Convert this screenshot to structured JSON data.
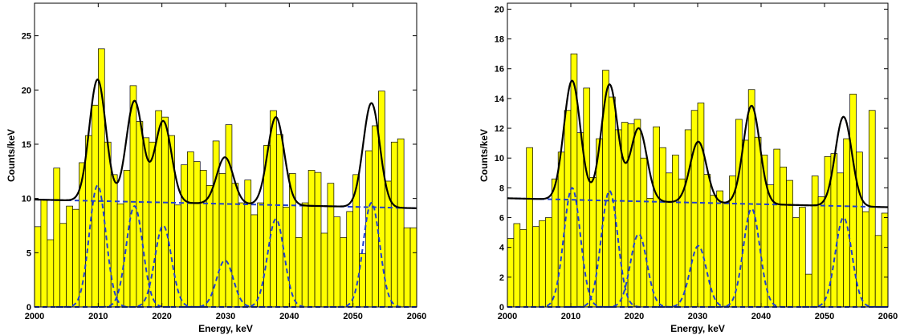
{
  "chart_data": [
    {
      "type": "bar",
      "xlabel": "Energy, keV",
      "ylabel": "Counts/keV",
      "xlim": [
        2000,
        2060
      ],
      "ylim": [
        0,
        28
      ],
      "xticks": [
        2000,
        2010,
        2020,
        2030,
        2040,
        2050,
        2060
      ],
      "yticks": [
        0,
        5,
        10,
        15,
        20,
        25
      ],
      "bar_color": "#ffff00",
      "bin_width": 1,
      "bins_start": 2000,
      "values": [
        7.4,
        9.9,
        6.2,
        12.8,
        7.7,
        9.3,
        9.0,
        13.3,
        15.8,
        18.6,
        23.8,
        15.2,
        12.2,
        9.5,
        12.6,
        20.4,
        17.1,
        15.6,
        15.2,
        18.1,
        17.5,
        15.8,
        9.4,
        13.1,
        14.3,
        13.4,
        12.6,
        11.2,
        15.3,
        12.3,
        16.8,
        11.4,
        9.6,
        11.7,
        8.5,
        9.6,
        14.9,
        18.1,
        15.9,
        9.2,
        12.3,
        6.4,
        9.6,
        12.6,
        12.4,
        6.8,
        11.4,
        8.3,
        6.4,
        8.8,
        12.2,
        4.9,
        14.4,
        16.7,
        19.9,
        11.6,
        15.2,
        15.5,
        7.3,
        7.3
      ],
      "series": [
        {
          "name": "",
          "kind": "fit",
          "color": "#000000",
          "background": {
            "start": 9.9,
            "end": 9.1
          },
          "peaks": [
            {
              "center": 2009.9,
              "amplitude": 11.2,
              "sigma": 1.3
            },
            {
              "center": 2015.7,
              "amplitude": 9.3,
              "sigma": 1.3
            },
            {
              "center": 2020.2,
              "amplitude": 7.5,
              "sigma": 1.3
            },
            {
              "center": 2029.9,
              "amplitude": 4.3,
              "sigma": 1.3
            },
            {
              "center": 2037.9,
              "amplitude": 8.1,
              "sigma": 1.3
            },
            {
              "center": 2052.9,
              "amplitude": 9.6,
              "sigma": 1.3
            }
          ]
        },
        {
          "name": "",
          "kind": "dashed-components",
          "color": "#1f3fd0"
        }
      ]
    },
    {
      "type": "bar",
      "xlabel": "Energy, keV",
      "ylabel": "Counts/keV",
      "xlim": [
        2000,
        2060
      ],
      "ylim": [
        0,
        20.4
      ],
      "xticks": [
        2000,
        2010,
        2020,
        2030,
        2040,
        2050,
        2060
      ],
      "yticks": [
        0,
        2,
        4,
        6,
        8,
        10,
        12,
        14,
        16,
        18,
        20
      ],
      "bar_color": "#ffff00",
      "bin_width": 1,
      "bins_start": 2000,
      "values": [
        4.6,
        5.6,
        5.2,
        10.7,
        5.4,
        5.8,
        6.0,
        8.6,
        10.4,
        13.2,
        17.0,
        11.7,
        14.7,
        8.7,
        11.3,
        15.9,
        14.1,
        11.9,
        12.4,
        12.3,
        12.6,
        10.0,
        7.3,
        12.1,
        10.7,
        9.0,
        10.2,
        8.6,
        11.9,
        13.2,
        13.7,
        8.9,
        7.5,
        7.8,
        7.0,
        8.8,
        12.6,
        11.2,
        14.6,
        11.4,
        10.2,
        8.2,
        10.6,
        9.4,
        8.5,
        6.0,
        6.7,
        2.2,
        8.8,
        7.4,
        10.1,
        10.3,
        9.0,
        11.3,
        14.3,
        10.4,
        6.4,
        13.2,
        4.8,
        6.3
      ],
      "series": [
        {
          "name": "",
          "kind": "fit",
          "color": "#000000",
          "background": {
            "start": 7.3,
            "end": 6.7
          },
          "peaks": [
            {
              "center": 2010.2,
              "amplitude": 8.0,
              "sigma": 1.3
            },
            {
              "center": 2016.1,
              "amplitude": 7.8,
              "sigma": 1.3
            },
            {
              "center": 2020.7,
              "amplitude": 4.9,
              "sigma": 1.3
            },
            {
              "center": 2030.1,
              "amplitude": 4.1,
              "sigma": 1.3
            },
            {
              "center": 2038.5,
              "amplitude": 6.6,
              "sigma": 1.3
            },
            {
              "center": 2053.0,
              "amplitude": 6.0,
              "sigma": 1.3
            }
          ]
        },
        {
          "name": "",
          "kind": "dashed-components",
          "color": "#1f3fd0"
        }
      ]
    }
  ]
}
